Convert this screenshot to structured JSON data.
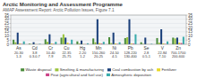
{
  "chart_data": {
    "type": "bar",
    "title": "Arctic Monitoring and Assessment Programme",
    "subtitle": "AMAP Assessment Report: Arctic Pollution Issues, Figure 7.1",
    "categories": [
      "As",
      "Cd",
      "Cr",
      "Cu",
      "Hg",
      "Mn",
      "Ni",
      "Pb",
      "Se",
      "V",
      "Zn"
    ],
    "annotations": [
      [
        "20-30",
        "1-3"
      ],
      [
        "3-8",
        "0.3-0.7"
      ],
      [
        "10-40",
        "7-9"
      ],
      [
        "22-35",
        "25-75"
      ],
      [
        "2-20",
        "1-2"
      ],
      [
        "150-260",
        "20-25"
      ],
      [
        "24-50",
        "4-5"
      ],
      [
        "128-220",
        "130-400"
      ],
      [
        "2-8",
        "0.5-1"
      ],
      [
        "22-84",
        "7-10"
      ],
      [
        "700-1700",
        "200-600"
      ]
    ],
    "series": [
      {
        "name": "Waste disposal",
        "color": "#4a8c3c",
        "values": [
          5.5,
          0.8,
          6.0,
          8.0,
          3.5,
          7.0,
          8.5,
          7.5,
          2.5,
          7.5,
          8.0
        ]
      },
      {
        "name": "Smelting & manufacturing",
        "color": "#9bc43d",
        "values": [
          2.5,
          0.3,
          3.0,
          12.0,
          1.0,
          2.5,
          1.5,
          8.5,
          0.5,
          2.0,
          7.0
        ]
      },
      {
        "name": "Coal combustion by ash",
        "color": "#1a3f7a",
        "values": [
          14.0,
          2.5,
          12.0,
          8.0,
          4.5,
          30.0,
          14.0,
          30.0,
          8.0,
          18.0,
          8.0
        ]
      },
      {
        "name": "Fertilizer",
        "color": "#e8d824",
        "values": [
          1.0,
          0.2,
          1.0,
          2.0,
          0.3,
          1.5,
          1.0,
          1.0,
          0.2,
          1.0,
          2.0
        ]
      },
      {
        "name": "Peat (agricultural and fuel use)",
        "color": "#cc4488",
        "values": [
          0.4,
          0.1,
          0.4,
          0.4,
          0.2,
          0.8,
          0.4,
          0.8,
          0.1,
          0.4,
          1.5
        ]
      },
      {
        "name": "Atmospheric deposition",
        "color": "#3aacac",
        "values": [
          3.5,
          0.6,
          3.0,
          5.5,
          1.2,
          3.0,
          2.5,
          12.0,
          0.6,
          3.5,
          9.0
        ]
      }
    ],
    "ylim": [
      0,
      35
    ],
    "yticks": [
      0,
      5,
      10,
      15,
      20,
      25,
      30,
      35
    ],
    "y2lim": [
      0,
      35
    ],
    "y2ticks": [
      0,
      5,
      10,
      15,
      20,
      25,
      30,
      35
    ],
    "grid": true,
    "legend": "bottom"
  }
}
